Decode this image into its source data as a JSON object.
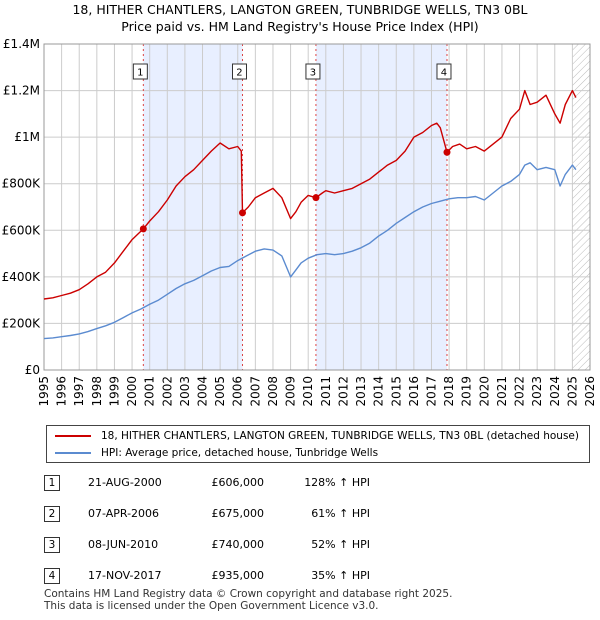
{
  "title_line1": "18, HITHER CHANTLERS, LANGTON GREEN, TUNBRIDGE WELLS, TN3 0BL",
  "title_line2": "Price paid vs. HM Land Registry's House Price Index (HPI)",
  "colors": {
    "property_line": "#cc0000",
    "hpi_line": "#5b8bd0",
    "highlight": "#e8efff",
    "sale_vline": "#dd4444",
    "grid": "#cccccc"
  },
  "chart_data": {
    "type": "line",
    "title": "18, HITHER CHANTLERS, LANGTON GREEN, TUNBRIDGE WELLS, TN3 0BL",
    "subtitle": "Price paid vs. HM Land Registry's House Price Index (HPI)",
    "xlim": [
      1995,
      2026
    ],
    "ylim": [
      0,
      1400000
    ],
    "x_ticks": [
      1995,
      1996,
      1997,
      1998,
      1999,
      2000,
      2001,
      2002,
      2003,
      2004,
      2005,
      2006,
      2007,
      2008,
      2009,
      2010,
      2011,
      2012,
      2013,
      2014,
      2015,
      2016,
      2017,
      2018,
      2019,
      2020,
      2021,
      2022,
      2023,
      2024,
      2025,
      2026
    ],
    "y_ticks": [
      0,
      200000,
      400000,
      600000,
      800000,
      1000000,
      1200000,
      1400000
    ],
    "y_tick_labels": [
      "£0",
      "£200K",
      "£400K",
      "£600K",
      "£800K",
      "£1M",
      "£1.2M",
      "£1.4M"
    ],
    "grid": true,
    "highlight_ranges": [
      [
        2000.64,
        2006.27
      ],
      [
        2010.44,
        2017.88
      ]
    ],
    "projection_start": 2025.0,
    "sales": [
      {
        "label": "1",
        "x": 2000.64,
        "y": 606000
      },
      {
        "label": "2",
        "x": 2006.27,
        "y": 675000
      },
      {
        "label": "3",
        "x": 2010.44,
        "y": 740000
      },
      {
        "label": "4",
        "x": 2017.88,
        "y": 935000
      }
    ],
    "series": [
      {
        "name": "18, HITHER CHANTLERS, LANGTON GREEN, TUNBRIDGE WELLS, TN3 0BL (detached house)",
        "color": "#cc0000",
        "x": [
          1995,
          1995.5,
          1996,
          1996.5,
          1997,
          1997.5,
          1998,
          1998.5,
          1999,
          1999.5,
          2000,
          2000.64,
          2001,
          2001.5,
          2002,
          2002.5,
          2003,
          2003.5,
          2004,
          2004.5,
          2005,
          2005.5,
          2006,
          2006.2,
          2006.27,
          2006.6,
          2007,
          2007.5,
          2008,
          2008.5,
          2009,
          2009.3,
          2009.6,
          2010,
          2010.44,
          2010.8,
          2011,
          2011.5,
          2012,
          2012.5,
          2013,
          2013.5,
          2014,
          2014.5,
          2015,
          2015.5,
          2016,
          2016.5,
          2017,
          2017.3,
          2017.5,
          2017.88,
          2018.2,
          2018.6,
          2019,
          2019.5,
          2020,
          2020.5,
          2021,
          2021.5,
          2022,
          2022.3,
          2022.6,
          2023,
          2023.5,
          2024,
          2024.3,
          2024.6,
          2025,
          2025.2
        ],
        "values": [
          305000,
          310000,
          320000,
          330000,
          345000,
          370000,
          400000,
          420000,
          460000,
          510000,
          560000,
          606000,
          640000,
          680000,
          730000,
          790000,
          830000,
          860000,
          900000,
          940000,
          975000,
          950000,
          960000,
          940000,
          675000,
          700000,
          740000,
          760000,
          780000,
          740000,
          650000,
          680000,
          720000,
          750000,
          740000,
          760000,
          770000,
          760000,
          770000,
          780000,
          800000,
          820000,
          850000,
          880000,
          900000,
          940000,
          1000000,
          1020000,
          1050000,
          1060000,
          1040000,
          935000,
          960000,
          970000,
          950000,
          960000,
          940000,
          970000,
          1000000,
          1080000,
          1120000,
          1200000,
          1140000,
          1150000,
          1180000,
          1100000,
          1060000,
          1140000,
          1200000,
          1170000
        ]
      },
      {
        "name": "HPI: Average price, detached house, Tunbridge Wells",
        "color": "#5b8bd0",
        "x": [
          1995,
          1995.5,
          1996,
          1996.5,
          1997,
          1997.5,
          1998,
          1998.5,
          1999,
          1999.5,
          2000,
          2000.5,
          2001,
          2001.5,
          2002,
          2002.5,
          2003,
          2003.5,
          2004,
          2004.5,
          2005,
          2005.5,
          2006,
          2006.5,
          2007,
          2007.5,
          2008,
          2008.5,
          2009,
          2009.3,
          2009.6,
          2010,
          2010.5,
          2011,
          2011.5,
          2012,
          2012.5,
          2013,
          2013.5,
          2014,
          2014.5,
          2015,
          2015.5,
          2016,
          2016.5,
          2017,
          2017.5,
          2018,
          2018.5,
          2019,
          2019.5,
          2020,
          2020.5,
          2021,
          2021.5,
          2022,
          2022.3,
          2022.6,
          2023,
          2023.5,
          2024,
          2024.3,
          2024.6,
          2025,
          2025.2
        ],
        "values": [
          135000,
          138000,
          143000,
          148000,
          155000,
          165000,
          178000,
          190000,
          205000,
          225000,
          245000,
          262000,
          282000,
          300000,
          325000,
          350000,
          370000,
          385000,
          405000,
          425000,
          440000,
          445000,
          470000,
          490000,
          510000,
          520000,
          515000,
          490000,
          400000,
          430000,
          460000,
          480000,
          495000,
          500000,
          495000,
          500000,
          510000,
          525000,
          545000,
          575000,
          600000,
          630000,
          655000,
          680000,
          700000,
          715000,
          725000,
          735000,
          740000,
          740000,
          745000,
          730000,
          760000,
          790000,
          810000,
          840000,
          880000,
          890000,
          860000,
          870000,
          860000,
          790000,
          840000,
          880000,
          860000
        ]
      }
    ]
  },
  "legend": {
    "property_label": "18, HITHER CHANTLERS, LANGTON GREEN, TUNBRIDGE WELLS, TN3 0BL (detached house)",
    "hpi_label": "HPI: Average price, detached house, Tunbridge Wells"
  },
  "sales_table": [
    {
      "num": "1",
      "date": "21-AUG-2000",
      "price": "£606,000",
      "hpi": "128% ↑ HPI"
    },
    {
      "num": "2",
      "date": "07-APR-2006",
      "price": "£675,000",
      "hpi": "61% ↑ HPI"
    },
    {
      "num": "3",
      "date": "08-JUN-2010",
      "price": "£740,000",
      "hpi": "52% ↑ HPI"
    },
    {
      "num": "4",
      "date": "17-NOV-2017",
      "price": "£935,000",
      "hpi": "35% ↑ HPI"
    }
  ],
  "footer_line1": "Contains HM Land Registry data © Crown copyright and database right 2025.",
  "footer_line2": "This data is licensed under the Open Government Licence v3.0."
}
